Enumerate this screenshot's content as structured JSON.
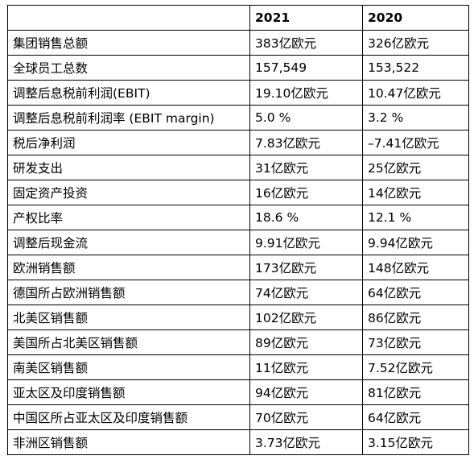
{
  "header": {
    "label": "",
    "col_2021": "2021",
    "col_2020": "2020"
  },
  "rows": [
    {
      "label": "集团销售总额",
      "y2021": "383亿欧元",
      "y2020": "326亿欧元"
    },
    {
      "label": "全球员工总数",
      "y2021": "157,549",
      "y2020": "153,522"
    },
    {
      "label": "调整后息税前利润(EBIT)",
      "y2021": "19.10亿欧元",
      "y2020": "10.47亿欧元"
    },
    {
      "label": "调整后息税前利润率 (EBIT margin)",
      "y2021": "5.0 %",
      "y2020": "3.2 %"
    },
    {
      "label": "税后净利润",
      "y2021": "7.83亿欧元",
      "y2020": "–7.41亿欧元"
    },
    {
      "label": "研发支出",
      "y2021": "31亿欧元",
      "y2020": "25亿欧元"
    },
    {
      "label": "固定资产投资",
      "y2021": "16亿欧元",
      "y2020": "14亿欧元"
    },
    {
      "label": "产权比率",
      "y2021": "18.6 %",
      "y2020": "12.1 %"
    },
    {
      "label": "调整后现金流",
      "y2021": "9.91亿欧元",
      "y2020": "9.94亿欧元"
    },
    {
      "label": "欧洲销售额",
      "y2021": "173亿欧元",
      "y2020": "148亿欧元"
    },
    {
      "label": "德国所占欧洲销售额",
      "y2021": "74亿欧元",
      "y2020": "64亿欧元"
    },
    {
      "label": "北美区销售额",
      "y2021": "102亿欧元",
      "y2020": "86亿欧元"
    },
    {
      "label": "美国所占北美区销售额",
      "y2021": "89亿欧元",
      "y2020": "73亿欧元"
    },
    {
      "label": "南美区销售额",
      "y2021": "11亿欧元",
      "y2020": "7.52亿欧元"
    },
    {
      "label": "亚太区及印度销售额",
      "y2021": "94亿欧元",
      "y2020": "81亿欧元"
    },
    {
      "label": "中国区所占亚太区及印度销售额",
      "y2021": "70亿欧元",
      "y2020": "64亿欧元"
    },
    {
      "label": "非洲区销售额",
      "y2021": "3.73亿欧元",
      "y2020": "3.15亿欧元"
    }
  ]
}
